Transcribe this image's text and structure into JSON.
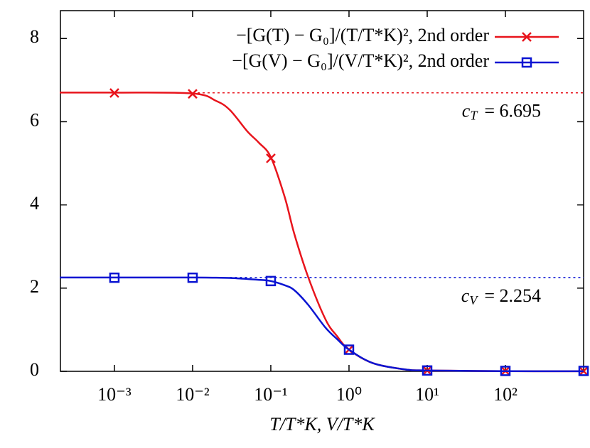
{
  "chart_data": {
    "type": "line",
    "x_label": "T/T*K, V/T*K",
    "log_x": true,
    "xlim": [
      0.000204,
      1000
    ],
    "ylim": [
      0,
      8.67
    ],
    "xticks": [
      {
        "value": 0.001,
        "label": "10⁻³"
      },
      {
        "value": 0.01,
        "label": "10⁻²"
      },
      {
        "value": 0.1,
        "label": "10⁻¹"
      },
      {
        "value": 1,
        "label": "10⁰"
      },
      {
        "value": 10,
        "label": "10¹"
      },
      {
        "value": 100,
        "label": "10²"
      }
    ],
    "yticks": [
      0,
      2,
      4,
      6,
      8
    ],
    "legend_position": "upper right",
    "series": [
      {
        "name": "−[G(T) − G₀]/(T/T*K)², 2nd order",
        "color": "#e8141c",
        "marker": "cross",
        "x": [
          0.001,
          0.01,
          0.1,
          1,
          10,
          100,
          1000
        ],
        "values": [
          6.69,
          6.67,
          5.12,
          0.52,
          0.02,
          0.01,
          0.005
        ],
        "curve_x": [
          0.0002,
          0.001,
          0.01,
          0.02,
          0.03,
          0.05,
          0.07,
          0.1,
          0.15,
          0.2,
          0.3,
          0.5,
          0.7,
          1,
          2,
          5,
          10,
          100,
          1000
        ],
        "curve_values": [
          6.7,
          6.7,
          6.68,
          6.5,
          6.28,
          5.77,
          5.5,
          5.15,
          4.2,
          3.3,
          2.27,
          1.25,
          0.85,
          0.52,
          0.2,
          0.05,
          0.02,
          0.005,
          0.002
        ],
        "reference": {
          "value": 6.695,
          "x_start": 0.01,
          "symbol": "c",
          "subscript": "T",
          "text": "= 6.695"
        }
      },
      {
        "name": "−[G(V) − G₀]/(V/T*K)², 2nd order",
        "color": "#0a14d2",
        "marker": "square",
        "x": [
          0.001,
          0.01,
          0.1,
          1,
          10,
          100,
          1000
        ],
        "values": [
          2.25,
          2.25,
          2.17,
          0.52,
          0.02,
          0.01,
          0.01
        ],
        "curve_x": [
          0.0002,
          0.001,
          0.01,
          0.02,
          0.03,
          0.05,
          0.07,
          0.1,
          0.15,
          0.2,
          0.3,
          0.5,
          0.7,
          1,
          2,
          5,
          10,
          100,
          1000
        ],
        "curve_values": [
          2.254,
          2.254,
          2.254,
          2.25,
          2.245,
          2.22,
          2.2,
          2.17,
          2.07,
          1.95,
          1.6,
          1.05,
          0.78,
          0.52,
          0.2,
          0.05,
          0.02,
          0.005,
          0.002
        ],
        "reference": {
          "value": 2.254,
          "x_start": 0.03,
          "symbol": "c",
          "subscript": "V",
          "text": "= 2.254"
        }
      }
    ]
  }
}
